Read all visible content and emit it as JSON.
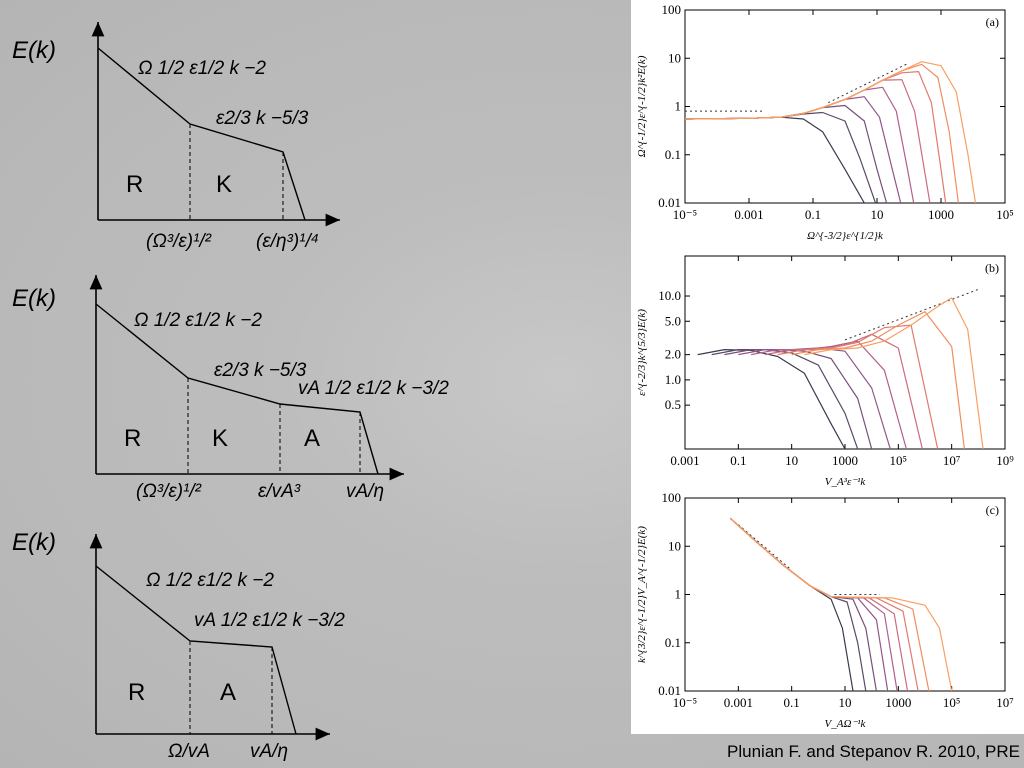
{
  "schematics": [
    {
      "ylabel": "E(k)",
      "regions": [
        "R",
        "K"
      ],
      "slopes": {
        "s1": "Ω 1/2 ε1/2 k −2",
        "s2": "ε2/3 k −5/3"
      },
      "breaks": [
        "(Ω³/ε)¹/²",
        "(ε/η³)¹/⁴"
      ]
    },
    {
      "ylabel": "E(k)",
      "regions": [
        "R",
        "K",
        "A"
      ],
      "slopes": {
        "s1": "Ω 1/2 ε1/2 k −2",
        "s2": "ε2/3 k −5/3",
        "s3": "vA 1/2 ε1/2 k −3/2"
      },
      "breaks": [
        "(Ω³/ε)¹/²",
        "ε/vA³",
        "vA/η"
      ]
    },
    {
      "ylabel": "E(k)",
      "regions": [
        "R",
        "A"
      ],
      "slopes": {
        "s1": "Ω 1/2 ε1/2 k −2",
        "s2": "vA 1/2 ε1/2 k −3/2"
      },
      "breaks": [
        "Ω/vA",
        "vA/η"
      ]
    }
  ],
  "citation": "Plunian F. and Stepanov R. 2010, PRE",
  "colors": [
    "#3a3a4e",
    "#5a4a66",
    "#76507a",
    "#905788",
    "#b0608a",
    "#cc6a7e",
    "#e07a6c",
    "#f08e5e",
    "#f7a062"
  ],
  "chart_data": [
    {
      "type": "line",
      "panel": "(a)",
      "xscale": "log",
      "yscale": "log",
      "xlim": [
        1e-05,
        100000.0
      ],
      "ylim": [
        0.01,
        100
      ],
      "xticks": [
        "10⁻⁵",
        "0.001",
        "0.1",
        "10",
        "1000",
        "10⁵"
      ],
      "yticks": [
        "0.01",
        "0.1",
        "1",
        "10",
        "100"
      ],
      "xlabel": "Ω^{-3/2}ε^{1/2}k",
      "ylabel": "Ω^{-1/2}ε^{-1/2}k²E(k)",
      "series": [
        {
          "x": [
            1e-05,
            0.001,
            0.01,
            0.05,
            0.2,
            1,
            4
          ],
          "y": [
            0.55,
            0.57,
            0.6,
            0.55,
            0.3,
            0.05,
            0.01
          ]
        },
        {
          "x": [
            1e-05,
            0.001,
            0.01,
            0.05,
            0.2,
            1,
            3,
            9
          ],
          "y": [
            0.55,
            0.57,
            0.6,
            0.7,
            0.75,
            0.5,
            0.08,
            0.01
          ]
        },
        {
          "x": [
            1e-05,
            0.001,
            0.01,
            0.05,
            0.2,
            1,
            4,
            10,
            20
          ],
          "y": [
            0.55,
            0.57,
            0.6,
            0.72,
            0.95,
            1.05,
            0.5,
            0.05,
            0.01
          ]
        },
        {
          "x": [
            1e-05,
            0.001,
            0.01,
            0.05,
            0.2,
            1,
            4,
            12,
            30,
            55
          ],
          "y": [
            0.55,
            0.57,
            0.6,
            0.72,
            0.95,
            1.4,
            1.6,
            0.6,
            0.05,
            0.01
          ]
        },
        {
          "x": [
            1e-05,
            0.001,
            0.01,
            0.05,
            0.2,
            1,
            4,
            15,
            40,
            90,
            140
          ],
          "y": [
            0.55,
            0.57,
            0.6,
            0.72,
            0.95,
            1.4,
            2.2,
            2.5,
            0.8,
            0.05,
            0.01
          ]
        },
        {
          "x": [
            1e-05,
            0.001,
            0.01,
            0.05,
            0.2,
            1,
            4,
            15,
            60,
            150,
            300,
            450
          ],
          "y": [
            0.55,
            0.57,
            0.6,
            0.72,
            0.95,
            1.4,
            2.2,
            3.5,
            3.6,
            0.8,
            0.05,
            0.01
          ]
        },
        {
          "x": [
            1e-05,
            0.001,
            0.01,
            0.05,
            0.2,
            1,
            4,
            15,
            60,
            200,
            500,
            1000,
            1400
          ],
          "y": [
            0.55,
            0.57,
            0.6,
            0.72,
            0.95,
            1.4,
            2.2,
            3.5,
            5.0,
            5.3,
            1.2,
            0.05,
            0.01
          ]
        },
        {
          "x": [
            1e-05,
            0.001,
            0.01,
            0.05,
            0.2,
            1,
            4,
            15,
            60,
            250,
            800,
            1800,
            3500
          ],
          "y": [
            0.55,
            0.57,
            0.6,
            0.72,
            0.95,
            1.4,
            2.2,
            3.5,
            5.5,
            7.5,
            4.0,
            0.3,
            0.01
          ]
        },
        {
          "x": [
            1e-05,
            0.001,
            0.01,
            0.05,
            0.2,
            1,
            4,
            15,
            60,
            250,
            1000,
            3000,
            7000,
            12000
          ],
          "y": [
            0.55,
            0.57,
            0.6,
            0.72,
            0.95,
            1.4,
            2.2,
            3.5,
            5.5,
            8.5,
            7.0,
            2.0,
            0.1,
            0.01
          ]
        }
      ],
      "guides": [
        {
          "x": [
            1e-05,
            0.003
          ],
          "y": [
            0.8,
            0.8
          ]
        },
        {
          "x": [
            0.3,
            100
          ],
          "y": [
            1.2,
            8
          ]
        }
      ]
    },
    {
      "type": "line",
      "panel": "(b)",
      "xscale": "log",
      "yscale": "log",
      "xlim": [
        0.001,
        1000000000.0
      ],
      "ylim": [
        0.15,
        30
      ],
      "xticks": [
        "0.001",
        "0.1",
        "10",
        "1000",
        "10⁵",
        "10⁷",
        "10⁹"
      ],
      "yticks": [
        "10.0",
        "5.0",
        "2.0",
        "1.0",
        "0.5"
      ],
      "xlabel": "V_A³ε⁻¹k",
      "ylabel": "ε^{-2/3}k^{5/3}E(k)",
      "series": [
        {
          "x": [
            0.003,
            0.03,
            0.3,
            3,
            30,
            300,
            1000
          ],
          "y": [
            2.0,
            2.3,
            2.25,
            1.9,
            1.2,
            0.3,
            0.15
          ]
        },
        {
          "x": [
            0.01,
            0.1,
            1,
            10,
            100,
            1000,
            3000
          ],
          "y": [
            2.0,
            2.3,
            2.3,
            2.1,
            1.5,
            0.4,
            0.15
          ]
        },
        {
          "x": [
            0.03,
            0.3,
            3,
            30,
            300,
            3000,
            10000
          ],
          "y": [
            2.0,
            2.3,
            2.3,
            2.2,
            1.8,
            0.6,
            0.15
          ]
        },
        {
          "x": [
            0.1,
            1,
            10,
            100,
            1000,
            10000,
            50000
          ],
          "y": [
            2.0,
            2.3,
            2.3,
            2.4,
            2.2,
            0.8,
            0.15
          ]
        },
        {
          "x": [
            0.3,
            3,
            30,
            300,
            3000,
            30000,
            200000
          ],
          "y": [
            2.0,
            2.3,
            2.3,
            2.5,
            2.9,
            1.3,
            0.15
          ]
        },
        {
          "x": [
            1,
            10,
            100,
            1000,
            10000,
            100000,
            800000
          ],
          "y": [
            2.0,
            2.3,
            2.3,
            2.6,
            3.5,
            2.4,
            0.15
          ]
        },
        {
          "x": [
            3,
            30,
            300,
            3000,
            30000,
            300000,
            3000000
          ],
          "y": [
            2.0,
            2.3,
            2.4,
            2.8,
            4.2,
            4.5,
            0.15
          ]
        },
        {
          "x": [
            10,
            100,
            1000,
            10000,
            100000,
            1000000,
            10000000,
            30000000
          ],
          "y": [
            2.0,
            2.3,
            2.4,
            2.9,
            4.5,
            6.5,
            2.5,
            0.15
          ]
        },
        {
          "x": [
            30,
            300,
            3000,
            30000,
            300000,
            3000000,
            10000000,
            40000000,
            150000000
          ],
          "y": [
            2.0,
            2.3,
            2.4,
            2.9,
            4.5,
            7.5,
            9.5,
            4.0,
            0.15
          ]
        }
      ],
      "guides": [
        {
          "x": [
            1000,
            100000000
          ],
          "y": [
            3.0,
            12
          ]
        }
      ]
    },
    {
      "type": "line",
      "panel": "(c)",
      "xscale": "log",
      "yscale": "log",
      "xlim": [
        1e-05,
        10000000.0
      ],
      "ylim": [
        0.01,
        100
      ],
      "xticks": [
        "10⁻⁵",
        "0.001",
        "0.1",
        "10",
        "1000",
        "10⁵",
        "10⁷"
      ],
      "yticks": [
        "0.01",
        "0.1",
        "1",
        "10",
        "100"
      ],
      "xlabel": "V_AΩ⁻¹k",
      "ylabel": "k^{3/2}ε^{-1/2}V_A^{-1/2}E(k)",
      "series": [
        {
          "x": [
            0.0005,
            0.005,
            0.05,
            0.5,
            3,
            8,
            20
          ],
          "y": [
            38,
            12,
            4,
            1.5,
            0.8,
            0.2,
            0.01
          ]
        },
        {
          "x": [
            0.0005,
            0.005,
            0.05,
            0.5,
            3,
            12,
            30,
            60
          ],
          "y": [
            38,
            12,
            4,
            1.5,
            0.9,
            0.7,
            0.1,
            0.01
          ]
        },
        {
          "x": [
            0.0005,
            0.005,
            0.05,
            0.5,
            3,
            20,
            60,
            150
          ],
          "y": [
            38,
            12,
            4,
            1.5,
            0.9,
            0.8,
            0.2,
            0.01
          ]
        },
        {
          "x": [
            0.0005,
            0.005,
            0.05,
            0.5,
            3,
            30,
            150,
            400
          ],
          "y": [
            38,
            12,
            4,
            1.5,
            0.9,
            0.85,
            0.3,
            0.01
          ]
        },
        {
          "x": [
            0.0005,
            0.005,
            0.05,
            0.5,
            3,
            50,
            300,
            900
          ],
          "y": [
            38,
            12,
            4,
            1.5,
            0.9,
            0.85,
            0.4,
            0.01
          ]
        },
        {
          "x": [
            0.0005,
            0.005,
            0.05,
            0.5,
            3,
            80,
            700,
            2200
          ],
          "y": [
            38,
            12,
            4,
            1.5,
            0.9,
            0.85,
            0.4,
            0.01
          ]
        },
        {
          "x": [
            0.0005,
            0.005,
            0.05,
            0.5,
            3,
            150,
            1500,
            5500
          ],
          "y": [
            38,
            12,
            4,
            1.5,
            0.9,
            0.85,
            0.45,
            0.01
          ]
        },
        {
          "x": [
            0.0005,
            0.005,
            0.05,
            0.5,
            3,
            300,
            3500,
            14000
          ],
          "y": [
            38,
            12,
            4,
            1.5,
            0.9,
            0.85,
            0.5,
            0.01
          ]
        },
        {
          "x": [
            0.0005,
            0.005,
            0.05,
            0.5,
            3,
            600,
            10000,
            35000,
            100000
          ],
          "y": [
            38,
            12,
            4,
            1.5,
            0.9,
            0.85,
            0.6,
            0.2,
            0.01
          ]
        }
      ],
      "guides": [
        {
          "x": [
            0.001,
            0.1
          ],
          "y": [
            28,
            3.2
          ]
        },
        {
          "x": [
            4,
            200
          ],
          "y": [
            1.0,
            1.0
          ]
        }
      ]
    }
  ]
}
